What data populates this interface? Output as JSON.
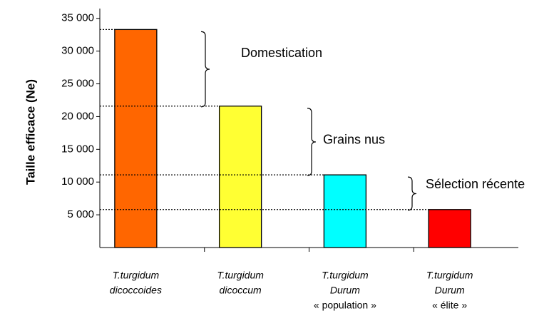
{
  "chart_data": {
    "type": "bar",
    "ylabel": "Taille efficace (Ne)",
    "categories": [
      [
        "T.turgidum",
        "dicoccoides"
      ],
      [
        "T.turgidum",
        "dicoccum"
      ],
      [
        "T.turgidum",
        "Durum",
        "« population »"
      ],
      [
        "T.turgidum",
        "Durum",
        "« élite »"
      ]
    ],
    "values": [
      33300,
      21600,
      11100,
      5800
    ],
    "colors": [
      "#ff6600",
      "#ffff33",
      "#00ffff",
      "#ff0000"
    ],
    "ylim": [
      0,
      36500
    ],
    "yticks": [
      {
        "value": 5000,
        "label": "5 000"
      },
      {
        "value": 10000,
        "label": "10 000"
      },
      {
        "value": 15000,
        "label": "15 000"
      },
      {
        "value": 20000,
        "label": "20 000"
      },
      {
        "value": 25000,
        "label": "25 000"
      },
      {
        "value": 30000,
        "label": "30 000"
      },
      {
        "value": 35000,
        "label": "35 000"
      }
    ],
    "annotations": [
      "Domestication",
      "Grains nus",
      "Sélection récente"
    ]
  }
}
